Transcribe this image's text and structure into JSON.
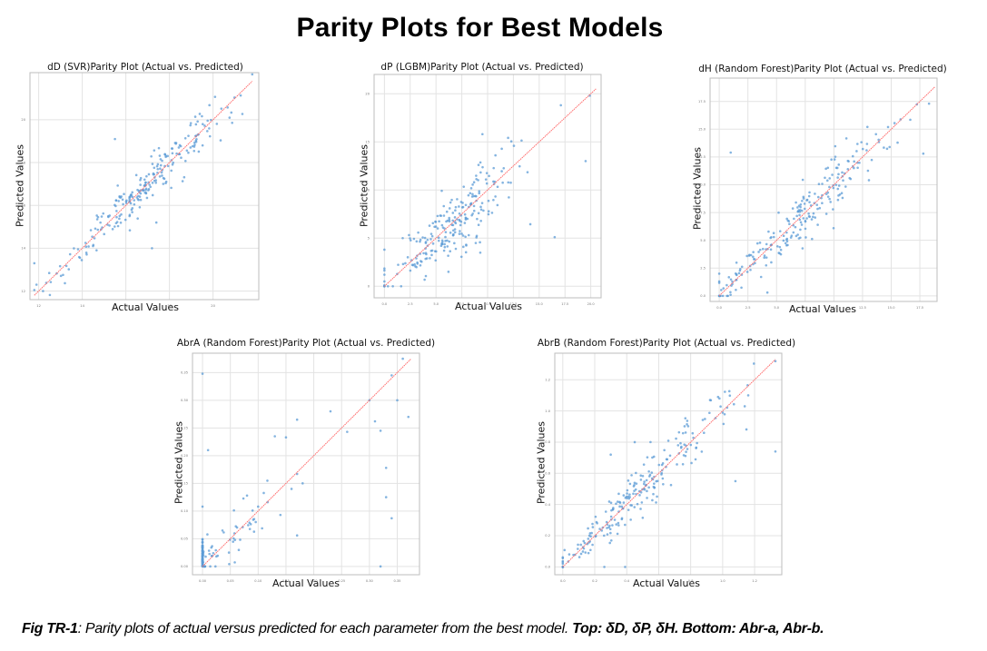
{
  "figure": {
    "title": "Parity Plots for Best Models",
    "caption": {
      "label": "Fig TR-1",
      "text": ": Parity plots of actual versus predicted for each parameter from the best model. ",
      "top_label": "Top",
      "top_values": ": δD, δP, δH. ",
      "bottom_label": "Bottom",
      "bottom_values": ": Abr-a, Abr-b."
    }
  },
  "colors": {
    "points": "#5b9bd5",
    "parity_line": "#ff6b6b",
    "grid": "#e3e3e3",
    "axes": "#bdbdbd"
  },
  "chart_data": [
    {
      "type": "scatter",
      "id": "dD",
      "title": "dD (SVR)Parity Plot (Actual vs. Predicted)",
      "xlabel": "Actual Values",
      "ylabel": "Predicted Values",
      "xlim": [
        11.6,
        22.1
      ],
      "ylim": [
        11.6,
        22.2
      ],
      "xticks": [
        12,
        14,
        16,
        18,
        20
      ],
      "yticks": [
        12,
        14,
        16,
        18,
        20
      ],
      "grid": true,
      "parity_line": [
        11.8,
        21.8
      ],
      "n_points": 240,
      "distribution": {
        "center": 16.8,
        "spread": 1.9,
        "noise": 0.55,
        "outliers": [
          [
            11.8,
            13.3
          ],
          [
            11.9,
            12.3
          ],
          [
            12.2,
            12.0
          ],
          [
            17.2,
            14.0
          ],
          [
            15.5,
            19.1
          ],
          [
            17.4,
            15.2
          ]
        ]
      }
    },
    {
      "type": "scatter",
      "id": "dP",
      "title": "dP (LGBM)Parity Plot (Actual vs. Predicted)",
      "xlabel": "Actual Values",
      "ylabel": "Predicted Values",
      "xlim": [
        -1,
        21
      ],
      "ylim": [
        -1.2,
        22
      ],
      "xticks": [
        "0.0",
        "2.5",
        "5.0",
        "7.5",
        "10.0",
        "12.5",
        "15.0",
        "17.5",
        "20.0"
      ],
      "yticks": [
        0,
        5,
        10,
        15,
        20
      ],
      "grid": true,
      "parity_line": [
        0,
        20.5
      ],
      "n_points": 230,
      "distribution": {
        "center": 6.5,
        "spread": 3.2,
        "noise": 2.0,
        "outliers": [
          [
            0,
            3.8
          ],
          [
            0,
            1.2
          ],
          [
            0,
            0.5
          ],
          [
            0,
            0.1
          ],
          [
            19.9,
            19.8
          ],
          [
            17.1,
            18.8
          ],
          [
            19.5,
            13.0
          ],
          [
            16.5,
            5.1
          ],
          [
            9.5,
            15.8
          ]
        ]
      }
    },
    {
      "type": "scatter",
      "id": "dH",
      "title": "dH (Random Forest)Parity Plot (Actual vs. Predicted)",
      "xlabel": "Actual Values",
      "ylabel": "Predicted Values",
      "xlim": [
        -0.8,
        19.0
      ],
      "ylim": [
        -0.5,
        19.6
      ],
      "xticks": [
        "0.0",
        "2.5",
        "5.0",
        "7.5",
        "10.0",
        "12.5",
        "15.0",
        "17.5"
      ],
      "yticks": [
        "0.0",
        "2.5",
        "5.0",
        "7.5",
        "10.0",
        "12.5",
        "15.0",
        "17.5"
      ],
      "grid": true,
      "parity_line": [
        0,
        18.8
      ],
      "n_points": 230,
      "distribution": {
        "center": 7.0,
        "spread": 3.8,
        "noise": 1.3,
        "outliers": [
          [
            1.0,
            12.9
          ],
          [
            0,
            2.0
          ],
          [
            0,
            1.3
          ],
          [
            4.2,
            0.3
          ],
          [
            18.3,
            17.3
          ],
          [
            17.8,
            12.8
          ]
        ]
      }
    },
    {
      "type": "scatter",
      "id": "AbrA",
      "title": "AbrA (Random Forest)Parity Plot (Actual vs. Predicted)",
      "xlabel": "Actual Values",
      "ylabel": "Predicted Values",
      "xlim": [
        -0.018,
        0.39
      ],
      "ylim": [
        -0.015,
        0.385
      ],
      "xticks": [
        "0.00",
        "0.05",
        "0.10",
        "0.15",
        "0.20",
        "0.25",
        "0.30",
        "0.35"
      ],
      "yticks": [
        "0.00",
        "0.05",
        "0.10",
        "0.15",
        "0.20",
        "0.25",
        "0.30",
        "0.35"
      ],
      "grid": true,
      "parity_line": [
        0,
        0.375
      ],
      "n_points": 150,
      "distribution": {
        "note": "dense cluster at actual=0 with predicted 0-0.06; sparse upper-right",
        "outliers": [
          [
            0,
            0.348
          ],
          [
            0.01,
            0.21
          ],
          [
            0.0,
            0.108
          ],
          [
            0.08,
            0.128
          ],
          [
            0.13,
            0.235
          ],
          [
            0.17,
            0.265
          ],
          [
            0.15,
            0.233
          ],
          [
            0.23,
            0.28
          ],
          [
            0.26,
            0.243
          ],
          [
            0.3,
            0.3
          ],
          [
            0.31,
            0.262
          ],
          [
            0.32,
            0.245
          ],
          [
            0.34,
            0.345
          ],
          [
            0.35,
            0.3
          ],
          [
            0.36,
            0.375
          ],
          [
            0.37,
            0.27
          ],
          [
            0.33,
            0.178
          ],
          [
            0.33,
            0.125
          ],
          [
            0.34,
            0.087
          ],
          [
            0.32,
            0.0
          ],
          [
            0.16,
            0.14
          ],
          [
            0.17,
            0.167
          ],
          [
            0.18,
            0.15
          ],
          [
            0.17,
            0.056
          ],
          [
            0.14,
            0.093
          ],
          [
            0.1,
            0.108
          ]
        ]
      }
    },
    {
      "type": "scatter",
      "id": "AbrB",
      "title": "AbrB (Random Forest)Parity Plot (Actual vs. Predicted)",
      "xlabel": "Actual Values",
      "ylabel": "Predicted Values",
      "xlim": [
        -0.05,
        1.37
      ],
      "ylim": [
        -0.05,
        1.37
      ],
      "xticks": [
        "0.0",
        "0.2",
        "0.4",
        "0.6",
        "0.8",
        "1.0",
        "1.2"
      ],
      "yticks": [
        "0.0",
        "0.2",
        "0.4",
        "0.6",
        "0.8",
        "1.0",
        "1.2"
      ],
      "grid": true,
      "parity_line": [
        0,
        1.33
      ],
      "n_points": 230,
      "distribution": {
        "center": 0.45,
        "spread": 0.28,
        "noise": 0.09,
        "outliers": [
          [
            1.33,
            0.74
          ],
          [
            1.08,
            0.55
          ],
          [
            1.16,
            1.1
          ],
          [
            0.98,
            1.08
          ],
          [
            0.26,
            0.0
          ],
          [
            0.39,
            0.0
          ],
          [
            0.45,
            0.8
          ],
          [
            0.3,
            0.72
          ]
        ]
      }
    }
  ]
}
